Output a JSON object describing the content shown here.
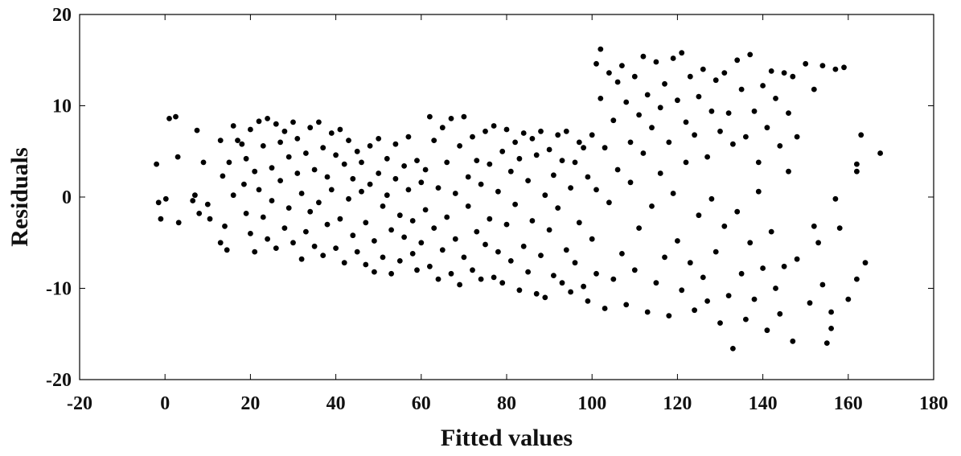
{
  "chart_data": {
    "type": "scatter",
    "title": "",
    "xlabel": "Fitted values",
    "ylabel": "Residuals",
    "xlim": [
      -20,
      180
    ],
    "ylim": [
      -20,
      20
    ],
    "xticks": [
      -20,
      0,
      20,
      40,
      60,
      80,
      100,
      120,
      140,
      160,
      180
    ],
    "yticks": [
      -20,
      -10,
      0,
      10,
      20
    ],
    "grid": false,
    "legend": "none",
    "marker_color": "#000000",
    "axis_color": "#000000",
    "series": [
      {
        "points": [
          [
            -2.0,
            3.6
          ],
          [
            -1.5,
            -0.6
          ],
          [
            -1.0,
            -2.4
          ],
          [
            0.2,
            -0.2
          ],
          [
            1.0,
            8.6
          ],
          [
            2.5,
            8.8
          ],
          [
            3.0,
            4.4
          ],
          [
            3.2,
            -2.8
          ],
          [
            6.5,
            -0.4
          ],
          [
            7.0,
            0.2
          ],
          [
            7.5,
            7.3
          ],
          [
            8.0,
            -1.8
          ],
          [
            9.0,
            3.8
          ],
          [
            10.5,
            -2.4
          ],
          [
            10.0,
            -0.8
          ],
          [
            13,
            6.2
          ],
          [
            13.5,
            2.3
          ],
          [
            14,
            -3.2
          ],
          [
            13,
            -5.0
          ],
          [
            14.5,
            -5.8
          ],
          [
            15,
            3.8
          ],
          [
            16,
            0.2
          ],
          [
            16,
            7.8
          ],
          [
            17,
            6.2
          ],
          [
            18,
            5.8
          ],
          [
            18.5,
            1.4
          ],
          [
            19,
            -1.8
          ],
          [
            19,
            4.2
          ],
          [
            20,
            7.4
          ],
          [
            20,
            -4.0
          ],
          [
            21,
            2.8
          ],
          [
            21,
            -6.0
          ],
          [
            22,
            8.3
          ],
          [
            22,
            0.8
          ],
          [
            23,
            -2.2
          ],
          [
            23,
            5.6
          ],
          [
            24,
            8.6
          ],
          [
            24,
            -4.6
          ],
          [
            25,
            3.2
          ],
          [
            25,
            -0.4
          ],
          [
            26,
            8.0
          ],
          [
            26,
            -5.6
          ],
          [
            27,
            6.0
          ],
          [
            27,
            1.8
          ],
          [
            28,
            -3.4
          ],
          [
            28,
            7.2
          ],
          [
            29,
            4.4
          ],
          [
            29,
            -1.2
          ],
          [
            30,
            8.2
          ],
          [
            30,
            -5.0
          ],
          [
            31,
            2.6
          ],
          [
            31,
            6.4
          ],
          [
            32,
            -6.8
          ],
          [
            32,
            0.4
          ],
          [
            33,
            4.8
          ],
          [
            33,
            -3.8
          ],
          [
            34,
            7.6
          ],
          [
            34,
            -1.6
          ],
          [
            35,
            3.0
          ],
          [
            35,
            -5.4
          ],
          [
            36,
            8.2
          ],
          [
            36,
            -0.6
          ],
          [
            37,
            5.4
          ],
          [
            37,
            -6.4
          ],
          [
            38,
            2.2
          ],
          [
            38,
            -3.0
          ],
          [
            39,
            7.0
          ],
          [
            39,
            0.8
          ],
          [
            40,
            -5.6
          ],
          [
            40,
            4.6
          ],
          [
            41,
            7.4
          ],
          [
            41,
            -2.4
          ],
          [
            42,
            3.6
          ],
          [
            42,
            -7.2
          ],
          [
            43,
            6.2
          ],
          [
            43,
            -0.2
          ],
          [
            44,
            2.0
          ],
          [
            44,
            -4.2
          ],
          [
            45,
            5.0
          ],
          [
            45,
            -6.0
          ],
          [
            46,
            0.6
          ],
          [
            46,
            3.8
          ],
          [
            47,
            -2.8
          ],
          [
            47,
            -7.4
          ],
          [
            48,
            5.6
          ],
          [
            48,
            1.4
          ],
          [
            49,
            -4.8
          ],
          [
            49,
            -8.2
          ],
          [
            50,
            6.4
          ],
          [
            50,
            2.6
          ],
          [
            51,
            -1.0
          ],
          [
            51,
            -6.6
          ],
          [
            52,
            4.2
          ],
          [
            52,
            0.2
          ],
          [
            53,
            -3.6
          ],
          [
            53,
            -8.4
          ],
          [
            54,
            5.8
          ],
          [
            54,
            2.0
          ],
          [
            55,
            -2.0
          ],
          [
            55,
            -7.0
          ],
          [
            56,
            3.4
          ],
          [
            56,
            -4.4
          ],
          [
            57,
            6.6
          ],
          [
            57,
            0.8
          ],
          [
            58,
            -6.2
          ],
          [
            58,
            -2.6
          ],
          [
            59,
            4.0
          ],
          [
            59,
            -8.0
          ],
          [
            60,
            1.6
          ],
          [
            60,
            -5.0
          ],
          [
            61,
            3.0
          ],
          [
            61,
            -1.4
          ],
          [
            62,
            8.8
          ],
          [
            62,
            -7.6
          ],
          [
            63,
            6.2
          ],
          [
            63,
            -3.4
          ],
          [
            64,
            1.0
          ],
          [
            64,
            -9.0
          ],
          [
            65,
            7.6
          ],
          [
            65,
            -5.8
          ],
          [
            66,
            3.8
          ],
          [
            66,
            -2.2
          ],
          [
            67,
            8.6
          ],
          [
            67,
            -8.4
          ],
          [
            68,
            0.4
          ],
          [
            68,
            -4.6
          ],
          [
            69,
            5.6
          ],
          [
            69,
            -9.6
          ],
          [
            70,
            8.8
          ],
          [
            70,
            -6.6
          ],
          [
            71,
            2.2
          ],
          [
            71,
            -1.0
          ],
          [
            72,
            6.6
          ],
          [
            72,
            -8.0
          ],
          [
            73,
            4.0
          ],
          [
            73,
            -3.8
          ],
          [
            74,
            1.4
          ],
          [
            74,
            -9.0
          ],
          [
            75,
            7.2
          ],
          [
            75,
            -5.2
          ],
          [
            76,
            3.6
          ],
          [
            76,
            -2.4
          ],
          [
            77,
            7.8
          ],
          [
            77,
            -8.8
          ],
          [
            78,
            0.6
          ],
          [
            78,
            -6.0
          ],
          [
            79,
            5.0
          ],
          [
            79,
            -9.4
          ],
          [
            80,
            7.4
          ],
          [
            80,
            -3.0
          ],
          [
            81,
            2.8
          ],
          [
            81,
            -7.0
          ],
          [
            82,
            6.0
          ],
          [
            82,
            -0.8
          ],
          [
            83,
            4.2
          ],
          [
            83,
            -10.2
          ],
          [
            84,
            7.0
          ],
          [
            84,
            -5.4
          ],
          [
            85,
            1.8
          ],
          [
            85,
            -8.2
          ],
          [
            86,
            6.4
          ],
          [
            86,
            -2.6
          ],
          [
            87,
            4.6
          ],
          [
            87,
            -10.6
          ],
          [
            88,
            7.2
          ],
          [
            88,
            -6.4
          ],
          [
            89,
            0.2
          ],
          [
            89,
            -11.0
          ],
          [
            90,
            5.2
          ],
          [
            90,
            -3.6
          ],
          [
            91,
            2.4
          ],
          [
            91,
            -8.6
          ],
          [
            92,
            6.8
          ],
          [
            92,
            -1.2
          ],
          [
            93,
            4.0
          ],
          [
            93,
            -9.4
          ],
          [
            94,
            7.2
          ],
          [
            94,
            -5.8
          ],
          [
            95,
            1.0
          ],
          [
            95,
            -10.4
          ],
          [
            96,
            3.8
          ],
          [
            96,
            -7.2
          ],
          [
            97,
            6.0
          ],
          [
            97,
            -2.8
          ],
          [
            98,
            5.4
          ],
          [
            98,
            -9.8
          ],
          [
            99,
            2.2
          ],
          [
            99,
            -11.4
          ],
          [
            100,
            6.8
          ],
          [
            100,
            -4.6
          ],
          [
            101,
            0.8
          ],
          [
            101,
            -8.4
          ],
          [
            101,
            14.6
          ],
          [
            102,
            10.8
          ],
          [
            102,
            16.2
          ],
          [
            103,
            5.4
          ],
          [
            103,
            -12.2
          ],
          [
            104,
            13.6
          ],
          [
            104,
            -0.6
          ],
          [
            105,
            8.4
          ],
          [
            105,
            -9.0
          ],
          [
            106,
            12.6
          ],
          [
            106,
            3.0
          ],
          [
            107,
            14.4
          ],
          [
            107,
            -6.2
          ],
          [
            108,
            10.4
          ],
          [
            108,
            -11.8
          ],
          [
            109,
            6.0
          ],
          [
            109,
            1.6
          ],
          [
            110,
            13.2
          ],
          [
            110,
            -8.0
          ],
          [
            111,
            9.0
          ],
          [
            111,
            -3.4
          ],
          [
            112,
            15.4
          ],
          [
            112,
            4.8
          ],
          [
            113,
            11.2
          ],
          [
            113,
            -12.6
          ],
          [
            114,
            7.6
          ],
          [
            114,
            -1.0
          ],
          [
            115,
            14.8
          ],
          [
            115,
            -9.4
          ],
          [
            116,
            9.8
          ],
          [
            116,
            2.6
          ],
          [
            117,
            12.4
          ],
          [
            117,
            -6.6
          ],
          [
            118,
            6.0
          ],
          [
            118,
            -13.0
          ],
          [
            119,
            15.2
          ],
          [
            119,
            0.4
          ],
          [
            120,
            10.6
          ],
          [
            120,
            -4.8
          ],
          [
            121,
            15.8
          ],
          [
            121,
            -10.2
          ],
          [
            122,
            8.2
          ],
          [
            122,
            3.8
          ],
          [
            123,
            13.2
          ],
          [
            123,
            -7.2
          ],
          [
            124,
            6.8
          ],
          [
            124,
            -12.4
          ],
          [
            125,
            11.0
          ],
          [
            125,
            -2.0
          ],
          [
            126,
            14.0
          ],
          [
            126,
            -8.8
          ],
          [
            127,
            4.4
          ],
          [
            127,
            -11.4
          ],
          [
            128,
            9.4
          ],
          [
            128,
            -0.2
          ],
          [
            129,
            12.8
          ],
          [
            129,
            -6.0
          ],
          [
            130,
            7.2
          ],
          [
            130,
            -13.8
          ],
          [
            131,
            13.6
          ],
          [
            131,
            -3.2
          ],
          [
            132,
            9.2
          ],
          [
            132,
            -10.8
          ],
          [
            133,
            5.8
          ],
          [
            133,
            -16.6
          ],
          [
            134,
            15.0
          ],
          [
            134,
            -1.6
          ],
          [
            135,
            11.8
          ],
          [
            135,
            -8.4
          ],
          [
            136,
            6.6
          ],
          [
            136,
            -13.4
          ],
          [
            137,
            15.6
          ],
          [
            137,
            -5.0
          ],
          [
            138,
            9.4
          ],
          [
            138,
            -11.2
          ],
          [
            139,
            3.8
          ],
          [
            139,
            0.6
          ],
          [
            140,
            12.2
          ],
          [
            140,
            -7.8
          ],
          [
            141,
            7.6
          ],
          [
            141,
            -14.6
          ],
          [
            142,
            13.8
          ],
          [
            142,
            -3.8
          ],
          [
            143,
            10.8
          ],
          [
            143,
            -10.0
          ],
          [
            144,
            5.6
          ],
          [
            144,
            -12.8
          ],
          [
            145,
            13.6
          ],
          [
            145,
            -7.6
          ],
          [
            146,
            9.2
          ],
          [
            146,
            2.8
          ],
          [
            147,
            13.2
          ],
          [
            147,
            -15.8
          ],
          [
            148,
            6.6
          ],
          [
            148,
            -6.8
          ],
          [
            150,
            14.6
          ],
          [
            151,
            -11.6
          ],
          [
            152,
            11.8
          ],
          [
            152,
            -3.2
          ],
          [
            153,
            -5.0
          ],
          [
            154,
            14.4
          ],
          [
            154,
            -9.6
          ],
          [
            155,
            -16.0
          ],
          [
            156,
            -12.6
          ],
          [
            156,
            -14.4
          ],
          [
            157,
            14.0
          ],
          [
            157,
            -0.2
          ],
          [
            158,
            -3.4
          ],
          [
            159,
            14.2
          ],
          [
            160,
            -11.2
          ],
          [
            162,
            -9.0
          ],
          [
            162,
            3.6
          ],
          [
            162,
            2.8
          ],
          [
            163,
            6.8
          ],
          [
            164,
            -7.2
          ],
          [
            167.5,
            4.8
          ]
        ]
      }
    ]
  }
}
